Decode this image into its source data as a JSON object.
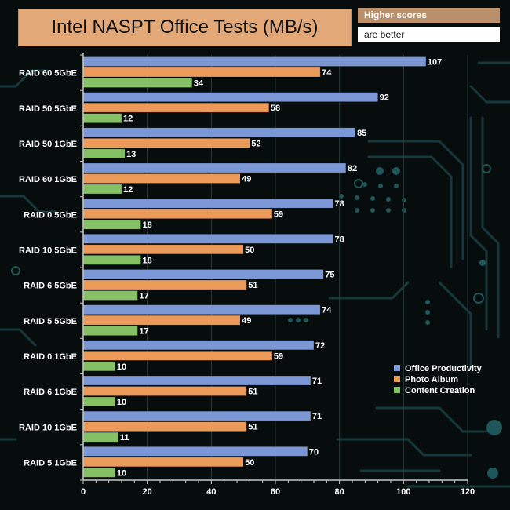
{
  "header": {
    "title": "Intel NASPT Office Tests (MB/s)",
    "note_line1": "Higher scores",
    "note_line2": "are better"
  },
  "chart_data": {
    "type": "bar",
    "orientation": "horizontal",
    "title": "Intel NASPT Office Tests (MB/s)",
    "xlabel": "",
    "ylabel": "",
    "xlim": [
      0,
      120
    ],
    "xticks": [
      0,
      20,
      40,
      60,
      80,
      100,
      120
    ],
    "legend_position": "right",
    "categories": [
      "RAID 60 5GbE",
      "RAID 50 5GbE",
      "RAID 50 1GbE",
      "RAID 60 1GbE",
      "RAID 0 5GbE",
      "RAID 10 5GbE",
      "RAID 6 5GbE",
      "RAID 5 5GbE",
      "RAID 0 1GbE",
      "RAID 6 1GbE",
      "RAID 10 1GbE",
      "RAID 5 1GbE"
    ],
    "series": [
      {
        "name": "Office Productivity",
        "color": "#7b97d6",
        "values": [
          107,
          92,
          85,
          82,
          78,
          78,
          75,
          74,
          72,
          71,
          71,
          70
        ]
      },
      {
        "name": "Photo Album",
        "color": "#ec9a5a",
        "values": [
          74,
          58,
          52,
          49,
          59,
          50,
          51,
          49,
          59,
          51,
          51,
          50
        ]
      },
      {
        "name": "Content Creation",
        "color": "#86c064",
        "values": [
          34,
          12,
          13,
          12,
          18,
          18,
          17,
          17,
          10,
          10,
          11,
          10
        ]
      }
    ]
  }
}
